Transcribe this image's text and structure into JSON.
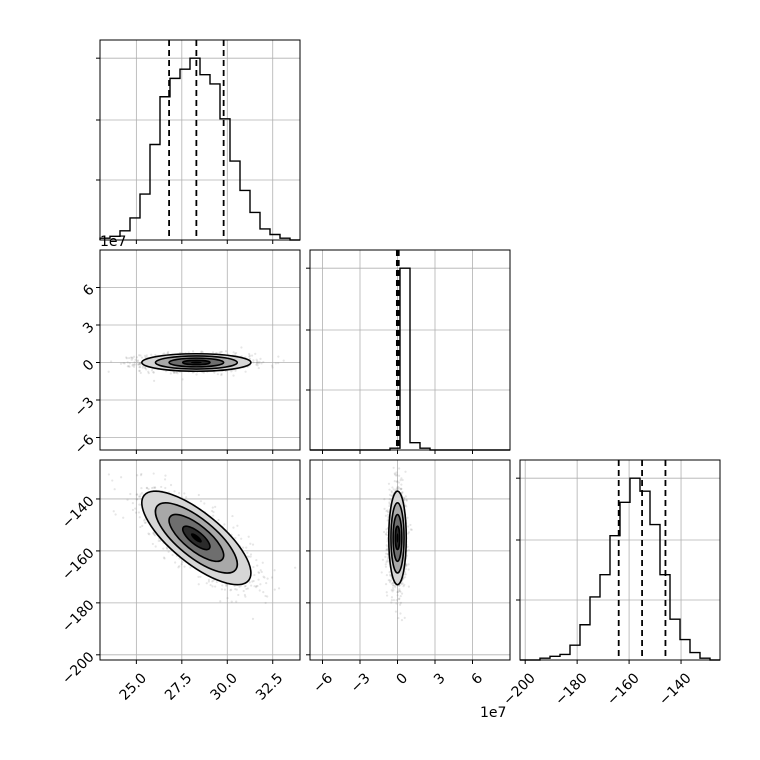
{
  "chart_data": {
    "type": "corner",
    "parameters": [
      {
        "label": "",
        "range": [
          23.0,
          34.0
        ],
        "ticks": [
          25.0,
          27.5,
          30.0,
          32.5
        ],
        "tick_labels": [
          "25.0",
          "27.5",
          "30.0",
          "32.5"
        ],
        "quantiles": [
          26.8,
          28.3,
          29.8
        ],
        "mean": 28.3,
        "sd": 1.5
      },
      {
        "label": "",
        "range": [
          -7.0,
          9.0
        ],
        "ticks": [
          -6,
          -3,
          0,
          3,
          6
        ],
        "tick_labels": [
          "−6",
          "−3",
          "0",
          "3",
          "6"
        ],
        "offset_text": "1e7",
        "quantiles": [
          -0.05,
          0.0,
          0.1
        ],
        "mean": 0.0,
        "sd": 0.35
      },
      {
        "label": "",
        "range": [
          -202.0,
          -125.0
        ],
        "ticks": [
          -200,
          -180,
          -160,
          -140
        ],
        "tick_labels": [
          "−200",
          "−180",
          "−160",
          "−140"
        ],
        "quantiles": [
          -164.0,
          -155.0,
          -146.0
        ],
        "mean": -155.0,
        "sd": 9.0
      }
    ],
    "hist_0": {
      "edges": [
        23.0,
        23.55,
        24.1,
        24.65,
        25.2,
        25.75,
        26.3,
        26.85,
        27.4,
        27.95,
        28.5,
        29.05,
        29.6,
        30.15,
        30.7,
        31.25,
        31.8,
        32.35,
        32.9,
        33.45,
        34.0
      ],
      "counts": [
        1,
        2,
        5,
        12,
        25,
        52,
        78,
        88,
        93,
        99,
        90,
        85,
        66,
        43,
        27,
        15,
        6,
        3,
        1,
        0
      ]
    },
    "hist_1": {
      "edges": [
        -7.0,
        -6.2,
        -5.4,
        -4.6,
        -3.8,
        -3.0,
        -2.2,
        -1.4,
        -0.6,
        0.2,
        1.0,
        1.8,
        2.6,
        3.4,
        4.2,
        5.0,
        5.8,
        6.6,
        7.4,
        8.2,
        9.0
      ],
      "counts": [
        0,
        0,
        0,
        0,
        0,
        0,
        0,
        0,
        1,
        100,
        4,
        1,
        0,
        0,
        0,
        0,
        0,
        0,
        0,
        0
      ]
    },
    "hist_2": {
      "edges": [
        -202.0,
        -198.15,
        -194.3,
        -190.45,
        -186.6,
        -182.75,
        -178.9,
        -175.05,
        -171.2,
        -167.35,
        -163.5,
        -159.65,
        -155.8,
        -151.95,
        -148.1,
        -144.25,
        -140.4,
        -136.55,
        -132.7,
        -128.85,
        -125.0
      ],
      "counts": [
        0,
        0,
        1,
        2,
        3,
        8,
        19,
        34,
        46,
        67,
        85,
        98,
        91,
        73,
        46,
        22,
        11,
        4,
        1,
        0
      ]
    },
    "correlations": {
      "0_1": 0.0,
      "0_2": -0.75,
      "1_2": 0.0
    },
    "grid": true
  }
}
